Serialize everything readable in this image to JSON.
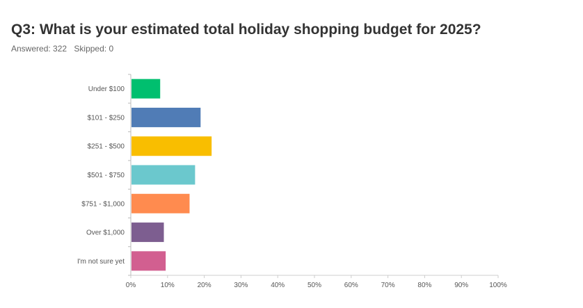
{
  "header": {
    "title": "Q3: What is your estimated total holiday shopping budget for 2025?",
    "answered": "Answered: 322",
    "skipped": "Skipped: 0"
  },
  "chart_data": {
    "type": "bar",
    "orientation": "horizontal",
    "categories": [
      "Under $100",
      "$101 - $250",
      "$251 - $500",
      "$501 - $750",
      "$751 - $1,000",
      "Over $1,000",
      "I'm not sure yet"
    ],
    "values": [
      8,
      19,
      22,
      17.5,
      16,
      9,
      9.5
    ],
    "colors": [
      "#00bf6f",
      "#507cb6",
      "#f9be00",
      "#6bc8cd",
      "#ff8b4f",
      "#7d5e90",
      "#d25f90"
    ],
    "xlim": [
      0,
      100
    ],
    "x_ticks": [
      "0%",
      "10%",
      "20%",
      "30%",
      "40%",
      "50%",
      "60%",
      "70%",
      "80%",
      "90%",
      "100%"
    ],
    "grid": false
  }
}
